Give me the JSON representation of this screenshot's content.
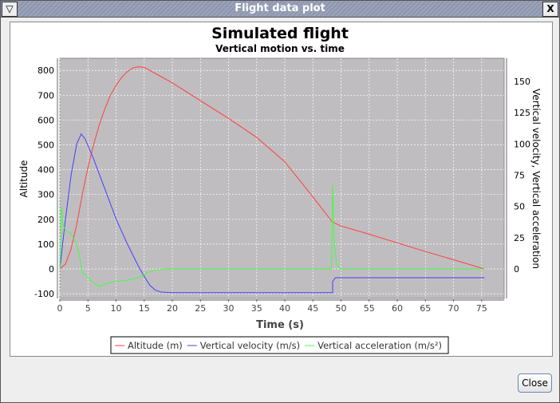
{
  "window": {
    "title": "Flight data plot",
    "menu_icon": "triangle-down-icon",
    "close_icon": "x-icon",
    "close_button": "Close"
  },
  "chart_data": {
    "type": "line",
    "title": "Simulated flight",
    "subtitle": "Vertical motion vs. time",
    "xlabel": "Time (s)",
    "ylabel_left": "Altitude",
    "ylabel_right": "Vertical velocity, Vertical acceleration",
    "xlim": [
      0,
      79
    ],
    "ylim_left": [
      -119,
      849
    ],
    "ylim_right": [
      -23.6,
      168.5
    ],
    "xticks": [
      0,
      5,
      10,
      15,
      20,
      25,
      30,
      35,
      40,
      45,
      50,
      55,
      60,
      65,
      70,
      75
    ],
    "yticks_left": [
      -100,
      0,
      100,
      200,
      300,
      400,
      500,
      600,
      700,
      800
    ],
    "yticks_right": [
      0,
      25,
      50,
      75,
      100,
      125,
      150
    ],
    "grid": true,
    "legend": "bottom",
    "background": "#c0bdc0",
    "series": [
      {
        "name": "Altitude (m)",
        "axis": "left",
        "color": "#ff4040",
        "points": [
          [
            0,
            0
          ],
          [
            1,
            20
          ],
          [
            2,
            80
          ],
          [
            3,
            180
          ],
          [
            4,
            300
          ],
          [
            5,
            410
          ],
          [
            6,
            500
          ],
          [
            7,
            580
          ],
          [
            8,
            645
          ],
          [
            9,
            700
          ],
          [
            10,
            740
          ],
          [
            11,
            772
          ],
          [
            12,
            795
          ],
          [
            13,
            810
          ],
          [
            14,
            815
          ],
          [
            15,
            812
          ],
          [
            16,
            800
          ],
          [
            18,
            775
          ],
          [
            20,
            750
          ],
          [
            25,
            678
          ],
          [
            30,
            607
          ],
          [
            35,
            530
          ],
          [
            40,
            432
          ],
          [
            45,
            290
          ],
          [
            48.4,
            190
          ],
          [
            50,
            173
          ],
          [
            55,
            140
          ],
          [
            60,
            105
          ],
          [
            65,
            70
          ],
          [
            70,
            37
          ],
          [
            75.5,
            0
          ]
        ]
      },
      {
        "name": "Vertical velocity (m/s)",
        "axis": "right",
        "color": "#4040ff",
        "points": [
          [
            0,
            0
          ],
          [
            0.5,
            20
          ],
          [
            1,
            40
          ],
          [
            2,
            75
          ],
          [
            3,
            100
          ],
          [
            3.8,
            108
          ],
          [
            4.5,
            104
          ],
          [
            6,
            88
          ],
          [
            8,
            64
          ],
          [
            10,
            40
          ],
          [
            12,
            20
          ],
          [
            14,
            2
          ],
          [
            15,
            -6
          ],
          [
            16,
            -13
          ],
          [
            17,
            -17
          ],
          [
            18,
            -18.5
          ],
          [
            20,
            -19
          ],
          [
            48.5,
            -19
          ],
          [
            48.5,
            -10
          ],
          [
            49,
            -7
          ],
          [
            75.5,
            -7
          ]
        ]
      },
      {
        "name": "Vertical acceleration (m/s²)",
        "axis": "right",
        "color": "#40ff40",
        "points": [
          [
            0,
            0
          ],
          [
            0.3,
            50
          ],
          [
            0.6,
            35
          ],
          [
            1,
            31
          ],
          [
            2,
            28
          ],
          [
            3,
            20
          ],
          [
            3.6,
            8
          ],
          [
            4,
            -3
          ],
          [
            5,
            -7
          ],
          [
            6,
            -11
          ],
          [
            7,
            -14
          ],
          [
            8,
            -12
          ],
          [
            10,
            -10
          ],
          [
            12,
            -9
          ],
          [
            14,
            -7
          ],
          [
            15.5,
            -3
          ],
          [
            17,
            -1
          ],
          [
            19,
            0
          ],
          [
            48.3,
            0
          ],
          [
            48.5,
            67
          ],
          [
            48.8,
            20
          ],
          [
            49.2,
            4
          ],
          [
            49.8,
            0
          ],
          [
            75.5,
            0
          ]
        ]
      }
    ]
  }
}
